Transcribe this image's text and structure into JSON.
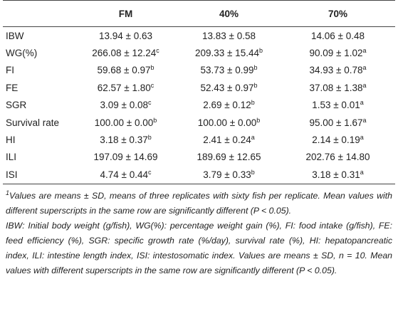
{
  "table": {
    "columns": [
      "FM",
      "40%",
      "70%"
    ],
    "rows": [
      {
        "label": "IBW",
        "cells": [
          {
            "text": "13.94 ± 0.63"
          },
          {
            "text": "13.83 ± 0.58"
          },
          {
            "text": "14.06 ± 0.48"
          }
        ]
      },
      {
        "label": "WG(%)",
        "cells": [
          {
            "text": "266.08 ± 12.24",
            "sup": "c"
          },
          {
            "text": "209.33 ± 15.44",
            "sup": "b"
          },
          {
            "text": "90.09 ± 1.02",
            "sup": "a"
          }
        ]
      },
      {
        "label": "FI",
        "cells": [
          {
            "text": "59.68 ± 0.97",
            "sup": "b"
          },
          {
            "text": "53.73 ± 0.99",
            "sup": "b"
          },
          {
            "text": "34.93 ± 0.78",
            "sup": "a"
          }
        ]
      },
      {
        "label": "FE",
        "cells": [
          {
            "text": "62.57 ± 1.80",
            "sup": "c"
          },
          {
            "text": "52.43 ± 0.97",
            "sup": "b"
          },
          {
            "text": "37.08 ± 1.38",
            "sup": "a"
          }
        ]
      },
      {
        "label": "SGR",
        "cells": [
          {
            "text": "3.09 ± 0.08",
            "sup": "c"
          },
          {
            "text": "2.69 ± 0.12",
            "sup": "b"
          },
          {
            "text": "1.53 ± 0.01",
            "sup": "a"
          }
        ]
      },
      {
        "label": "Survival rate",
        "cells": [
          {
            "text": "100.00 ± 0.00",
            "sup": "b"
          },
          {
            "text": "100.00 ± 0.00",
            "sup": "b"
          },
          {
            "text": "95.00 ± 1.67",
            "sup": "a"
          }
        ]
      },
      {
        "label": "HI",
        "cells": [
          {
            "text": "3.18 ± 0.37",
            "sup": "b"
          },
          {
            "text": "2.41 ± 0.24",
            "sup": "a"
          },
          {
            "text": "2.14 ± 0.19",
            "sup": "a"
          }
        ]
      },
      {
        "label": "ILI",
        "cells": [
          {
            "text": "197.09 ± 14.69"
          },
          {
            "text": "189.69 ± 12.65"
          },
          {
            "text": "202.76 ± 14.80"
          }
        ]
      },
      {
        "label": "ISI",
        "cells": [
          {
            "text": "4.74 ± 0.44",
            "sup": "c"
          },
          {
            "text": "3.79 ± 0.33",
            "sup": "b"
          },
          {
            "text": "3.18 ± 0.31",
            "sup": "a"
          }
        ]
      }
    ]
  },
  "footnote": {
    "marker": "1",
    "paragraphs": [
      "Values are means ± SD, means of three replicates with sixty fish per replicate. Mean values with different superscripts in the same row are significantly different (P < 0.05).",
      "IBW: Initial body weight (g/fish), WG(%): percentage weight gain (%), FI: food intake (g/fish), FE: feed efficiency (%), SGR: specific growth rate (%/day), survival rate (%), HI: hepatopancreatic index, ILI: intestine length index, ISI: intestosomatic index. Values are means ± SD, n = 10. Mean values with different superscripts in the same row are significantly different (P < 0.05)."
    ]
  }
}
